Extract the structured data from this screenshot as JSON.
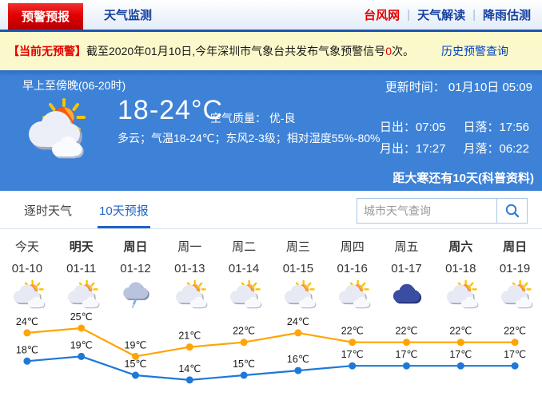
{
  "nav": {
    "tabs": [
      {
        "label": "预警预报",
        "active": true
      },
      {
        "label": "天气监测",
        "active": false
      }
    ],
    "links": [
      "台风网",
      "天气解读",
      "降雨估测"
    ],
    "separator": "|"
  },
  "alert": {
    "badge": "【当前无预警】",
    "text_before": "截至2020年01月10日,今年深圳市气象台共发布气象预警信号 ",
    "count": "0",
    "text_after": " 次。",
    "link": "历史预警查询"
  },
  "hero": {
    "period_title": "早上至傍晚(06-20时)",
    "weather_icon": "partly-cloudy-big",
    "temp_range": "18-24°C",
    "air_quality_label": "空气质量：",
    "air_quality_value": "优-良",
    "description": "多云；气温18-24℃；东风2-3级；相对湿度55%-80%",
    "update_label": "更新时间：",
    "update_value": "01月10日 05:09",
    "sun_moon": [
      "日出：07:05",
      "日落：17:56",
      "月出：17:27",
      "月落：06:22"
    ],
    "solar_term_note": "距大寒还有10天(科普资料)"
  },
  "tabs": {
    "items": [
      {
        "label": "逐时天气",
        "active": false
      },
      {
        "label": "10天预报",
        "active": true
      }
    ],
    "search_placeholder": "城市天气查询",
    "search_icon": "magnifier-icon"
  },
  "forecast": {
    "days": [
      {
        "name": "今天",
        "date": "01-10",
        "icon": "partly-cloudy",
        "bold": false
      },
      {
        "name": "明天",
        "date": "01-11",
        "icon": "partly-cloudy",
        "bold": true
      },
      {
        "name": "周日",
        "date": "01-12",
        "icon": "light-rain",
        "bold": true
      },
      {
        "name": "周一",
        "date": "01-13",
        "icon": "partly-cloudy",
        "bold": false
      },
      {
        "name": "周二",
        "date": "01-14",
        "icon": "partly-cloudy",
        "bold": false
      },
      {
        "name": "周三",
        "date": "01-15",
        "icon": "partly-cloudy",
        "bold": false
      },
      {
        "name": "周四",
        "date": "01-16",
        "icon": "partly-cloudy",
        "bold": false
      },
      {
        "name": "周五",
        "date": "01-17",
        "icon": "cloudy",
        "bold": false
      },
      {
        "name": "周六",
        "date": "01-18",
        "icon": "partly-cloudy",
        "bold": true
      },
      {
        "name": "周日",
        "date": "01-19",
        "icon": "partly-cloudy",
        "bold": true
      }
    ]
  },
  "chart_data": {
    "type": "line",
    "categories": [
      "01-10",
      "01-11",
      "01-12",
      "01-13",
      "01-14",
      "01-15",
      "01-16",
      "01-17",
      "01-18",
      "01-19"
    ],
    "series": [
      {
        "name": "高温",
        "color": "#ffa400",
        "values": [
          24,
          25,
          19,
          21,
          22,
          24,
          22,
          22,
          22,
          22
        ]
      },
      {
        "name": "低温",
        "color": "#1e78d7",
        "values": [
          18,
          19,
          15,
          14,
          15,
          16,
          17,
          17,
          17,
          17
        ]
      }
    ],
    "label_suffix": "℃",
    "ylim": [
      13,
      27
    ],
    "grid": false,
    "legend": "none"
  },
  "colors": {
    "nav_red": "#e30000",
    "nav_blue": "#16409e",
    "nav_border": "#1e55b0",
    "alert_bg": "#fbf9cb",
    "hero_bg": "#3d82d6",
    "tab_active": "#1f63c4",
    "link_blue": "#0042c8",
    "line_high": "#ffa400",
    "line_low": "#1e78d7"
  }
}
